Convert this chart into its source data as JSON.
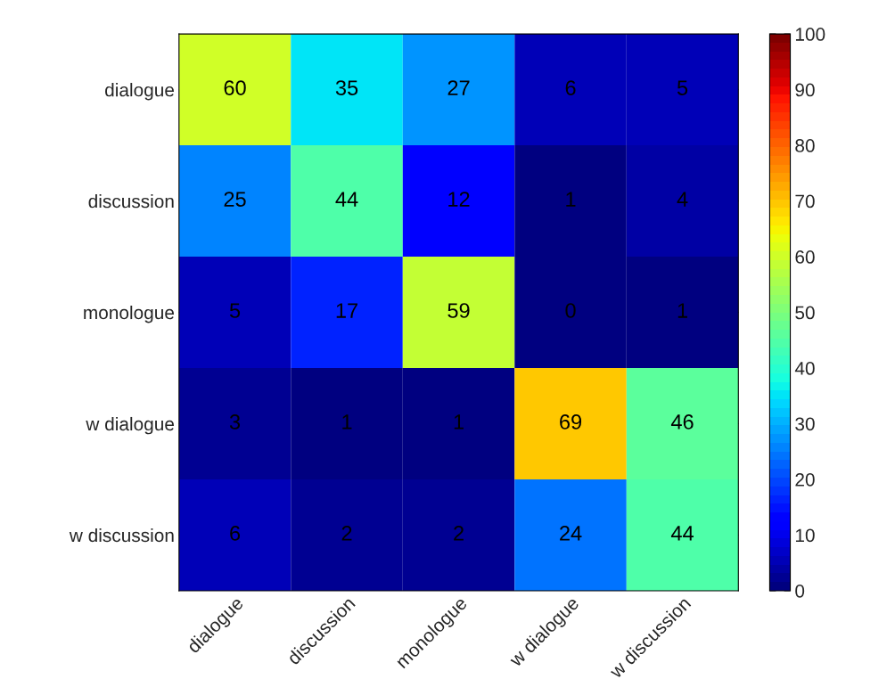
{
  "chart_data": {
    "type": "heatmap",
    "categories": [
      "dialogue",
      "discussion",
      "monologue",
      "w dialogue",
      "w discussion"
    ],
    "y_categories": [
      "dialogue",
      "discussion",
      "monologue",
      "w dialogue",
      "w discussion"
    ],
    "cells": [
      [
        60,
        35,
        27,
        6,
        5
      ],
      [
        25,
        44,
        12,
        1,
        4
      ],
      [
        5,
        17,
        59,
        0,
        1
      ],
      [
        3,
        1,
        1,
        69,
        46
      ],
      [
        6,
        2,
        2,
        24,
        44
      ]
    ],
    "data_labels": true,
    "clim": [
      0,
      100
    ],
    "cticks": [
      0,
      10,
      20,
      30,
      40,
      50,
      60,
      70,
      80,
      90,
      100
    ]
  }
}
